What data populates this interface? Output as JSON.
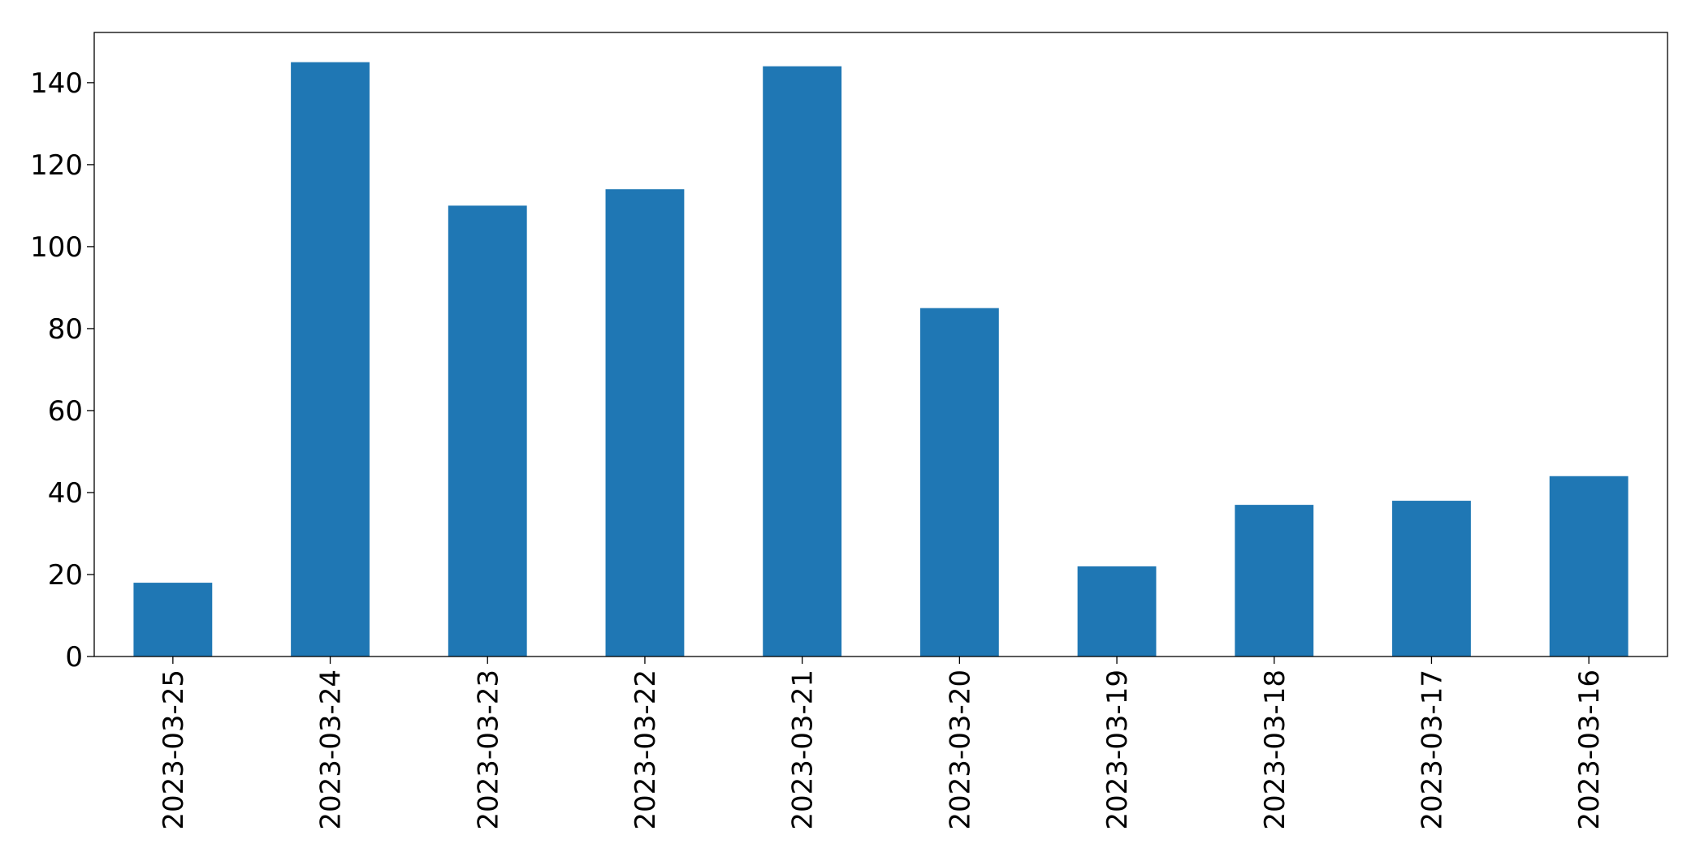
{
  "chart_data": {
    "type": "bar",
    "categories": [
      "2023-03-25",
      "2023-03-24",
      "2023-03-23",
      "2023-03-22",
      "2023-03-21",
      "2023-03-20",
      "2023-03-19",
      "2023-03-18",
      "2023-03-17",
      "2023-03-16"
    ],
    "values": [
      18,
      145,
      110,
      114,
      144,
      85,
      22,
      37,
      38,
      44
    ],
    "color": "#1f77b4",
    "ylim": [
      0,
      152.25
    ],
    "yticks": [
      0,
      20,
      40,
      60,
      80,
      100,
      120,
      140
    ],
    "grid": false
  }
}
